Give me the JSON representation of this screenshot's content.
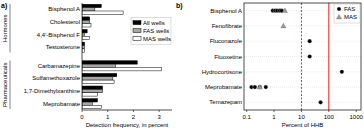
{
  "chart_data": [
    {
      "type": "bar",
      "orientation": "horizontal",
      "title": "a)",
      "categories": [
        "Bisphenol A",
        "Cholesterol",
        "4,4'-Bisphenol F",
        "Testosterone",
        "Carbamazepine",
        "Sulfamethoxazole",
        "1,7-Dimethylxanthine",
        "Meprobamate"
      ],
      "category_groups": [
        "Hormones",
        "Hormones",
        "Hormones",
        "Hormones",
        "Pharmaceuticals",
        "Pharmaceuticals",
        "Pharmaceuticals",
        "Pharmaceuticals"
      ],
      "series": [
        {
          "name": "All wells",
          "color": "#000000",
          "values": [
            0.75,
            0.3,
            0.2,
            0.1,
            2.15,
            1.35,
            0.8,
            0.6
          ]
        },
        {
          "name": "FAS wells",
          "color": "#a6a6a6",
          "values": [
            0.5,
            0.3,
            0.1,
            0.1,
            1.3,
            1.2,
            0.8,
            0.4
          ]
        },
        {
          "name": "MAS wells",
          "color": "#ffffff",
          "values": [
            1.6,
            0.35,
            0.3,
            0.1,
            3.1,
            1.25,
            0.6,
            0.75
          ]
        }
      ],
      "xlabel": "Detection frequency, in percent",
      "xlim": [
        0,
        3.5
      ],
      "xticks": [
        0,
        1,
        2,
        3
      ],
      "legend": "top-right"
    },
    {
      "type": "scatter",
      "title": "b)",
      "categories": [
        "Bisphenol A",
        "Fenofibrate",
        "Fluconazole",
        "Fluoxetine",
        "Hydrocortisone",
        "Meprobamate",
        "Temazepam"
      ],
      "series": [
        {
          "name": "FAS",
          "color": "#000000",
          "marker": "circle",
          "values": [
            [
              0.9,
              1.1,
              1.3,
              1.6,
              1.9
            ],
            null,
            [
              20
            ],
            [
              20
            ],
            [
              300
            ],
            [
              0.15,
              0.2,
              0.3,
              0.5
            ],
            [
              50
            ]
          ]
        },
        {
          "name": "MAS",
          "color": "#999999",
          "marker": "triangle",
          "values": [
            [
              2.5
            ],
            [
              2.2
            ],
            null,
            null,
            null,
            [
              0.3
            ],
            null
          ]
        }
      ],
      "xlabel": "Percent of HHB",
      "log": "x",
      "xlim": [
        0.08,
        1500
      ],
      "xticks": [
        0.1,
        1,
        10,
        100,
        1000
      ],
      "grid": true,
      "legend": "top-right",
      "reference_lines": [
        {
          "value": 10,
          "color": "#ff0000",
          "line_style": "dashed"
        },
        {
          "value": 100,
          "color": "#ff0000",
          "line_style": "solid"
        }
      ]
    }
  ]
}
